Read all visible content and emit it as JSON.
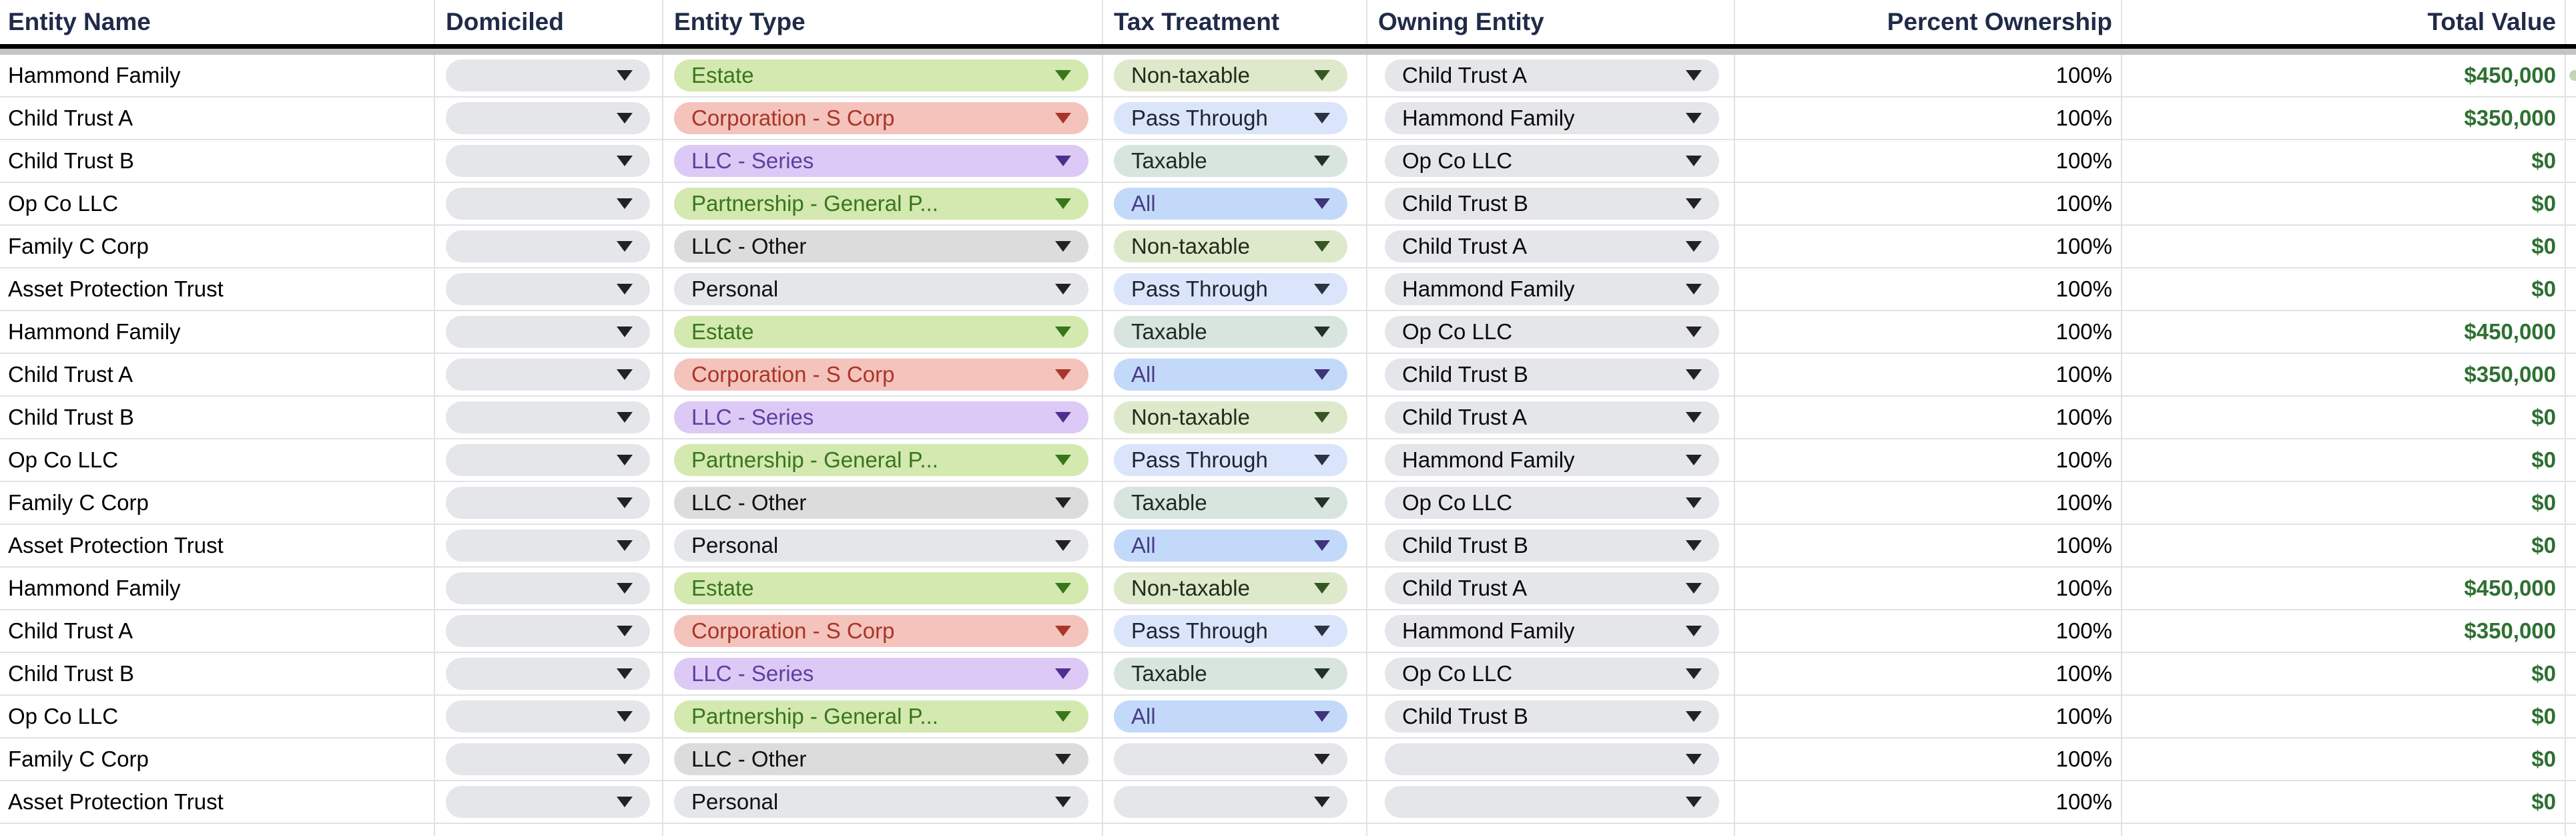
{
  "sheet": {
    "columns": [
      "Entity Name",
      "Domiciled",
      "Entity Type",
      "Tax Treatment",
      "Owning Entity",
      "Percent Ownership",
      "Total Value"
    ],
    "colors": {
      "header_text": "#1f2b47",
      "grid_line": "#e1e2e3",
      "frozen_divider": "#000000",
      "frozen_shadow": "#c3c4c4",
      "money_green": "#2e7031",
      "body_text": "#000000"
    },
    "chip_styles": {
      "empty_default": {
        "bg": "#e5e6e9",
        "fg": "#111111",
        "arrow": "#222222"
      },
      "owning_default": {
        "bg": "#e5e6e9",
        "fg": "#0b0b0b",
        "arrow": "#222222"
      },
      "estate": {
        "bg": "#d3e9af",
        "fg": "#38761d",
        "arrow": "#38761d"
      },
      "s_corp": {
        "bg": "#f4c3bc",
        "fg": "#a93529",
        "arrow": "#a93529"
      },
      "llc_series": {
        "bg": "#ddc9f5",
        "fg": "#5e3f9e",
        "arrow": "#4c2f8f"
      },
      "partnership": {
        "bg": "#d3e9af",
        "fg": "#38761d",
        "arrow": "#38761d"
      },
      "llc_other": {
        "bg": "#dcdcdc",
        "fg": "#111111",
        "arrow": "#222222"
      },
      "personal": {
        "bg": "#e5e6e9",
        "fg": "#111111",
        "arrow": "#222222"
      },
      "non_taxable": {
        "bg": "#dde9ca",
        "fg": "#232b1b",
        "arrow": "#375523"
      },
      "taxable": {
        "bg": "#d7e5de",
        "fg": "#1f2b26",
        "arrow": "#223128"
      },
      "pass_through": {
        "bg": "#dae5fb",
        "fg": "#1f2430",
        "arrow": "#2b3242"
      },
      "all": {
        "bg": "#c3d9f9",
        "fg": "#493d87",
        "arrow": "#3f3379"
      }
    },
    "rows": [
      {
        "name": "Hammond Family",
        "entity_type": {
          "style": "estate",
          "label": "Estate"
        },
        "tax": {
          "style": "non_taxable",
          "label": "Non-taxable"
        },
        "owning": "Child Trust A",
        "percent": "100%",
        "total": "$450,000",
        "edge_sliver": true
      },
      {
        "name": "Child Trust A",
        "entity_type": {
          "style": "s_corp",
          "label": "Corporation - S Corp"
        },
        "tax": {
          "style": "pass_through",
          "label": "Pass Through"
        },
        "owning": "Hammond Family",
        "percent": "100%",
        "total": "$350,000",
        "edge_sliver": false
      },
      {
        "name": "Child Trust B",
        "entity_type": {
          "style": "llc_series",
          "label": "LLC - Series"
        },
        "tax": {
          "style": "taxable",
          "label": "Taxable"
        },
        "owning": "Op Co LLC",
        "percent": "100%",
        "total": "$0",
        "edge_sliver": false
      },
      {
        "name": "Op Co LLC",
        "entity_type": {
          "style": "partnership",
          "label": "Partnership - General P..."
        },
        "tax": {
          "style": "all",
          "label": "All"
        },
        "owning": "Child Trust B",
        "percent": "100%",
        "total": "$0",
        "edge_sliver": false
      },
      {
        "name": "Family C Corp",
        "entity_type": {
          "style": "llc_other",
          "label": "LLC - Other"
        },
        "tax": {
          "style": "non_taxable",
          "label": "Non-taxable"
        },
        "owning": "Child Trust A",
        "percent": "100%",
        "total": "$0",
        "edge_sliver": false
      },
      {
        "name": "Asset Protection Trust",
        "entity_type": {
          "style": "personal",
          "label": "Personal"
        },
        "tax": {
          "style": "pass_through",
          "label": "Pass Through"
        },
        "owning": "Hammond Family",
        "percent": "100%",
        "total": "$0",
        "edge_sliver": false
      },
      {
        "name": "Hammond Family",
        "entity_type": {
          "style": "estate",
          "label": "Estate"
        },
        "tax": {
          "style": "taxable",
          "label": "Taxable"
        },
        "owning": "Op Co LLC",
        "percent": "100%",
        "total": "$450,000",
        "edge_sliver": false
      },
      {
        "name": "Child Trust A",
        "entity_type": {
          "style": "s_corp",
          "label": "Corporation - S Corp"
        },
        "tax": {
          "style": "all",
          "label": "All"
        },
        "owning": "Child Trust B",
        "percent": "100%",
        "total": "$350,000",
        "edge_sliver": false
      },
      {
        "name": "Child Trust B",
        "entity_type": {
          "style": "llc_series",
          "label": "LLC - Series"
        },
        "tax": {
          "style": "non_taxable",
          "label": "Non-taxable"
        },
        "owning": "Child Trust A",
        "percent": "100%",
        "total": "$0",
        "edge_sliver": false
      },
      {
        "name": "Op Co LLC",
        "entity_type": {
          "style": "partnership",
          "label": "Partnership - General P..."
        },
        "tax": {
          "style": "pass_through",
          "label": "Pass Through"
        },
        "owning": "Hammond Family",
        "percent": "100%",
        "total": "$0",
        "edge_sliver": false
      },
      {
        "name": "Family C Corp",
        "entity_type": {
          "style": "llc_other",
          "label": "LLC - Other"
        },
        "tax": {
          "style": "taxable",
          "label": "Taxable"
        },
        "owning": "Op Co LLC",
        "percent": "100%",
        "total": "$0",
        "edge_sliver": false
      },
      {
        "name": "Asset Protection Trust",
        "entity_type": {
          "style": "personal",
          "label": "Personal"
        },
        "tax": {
          "style": "all",
          "label": "All"
        },
        "owning": "Child Trust B",
        "percent": "100%",
        "total": "$0",
        "edge_sliver": false
      },
      {
        "name": "Hammond Family",
        "entity_type": {
          "style": "estate",
          "label": "Estate"
        },
        "tax": {
          "style": "non_taxable",
          "label": "Non-taxable"
        },
        "owning": "Child Trust A",
        "percent": "100%",
        "total": "$450,000",
        "edge_sliver": false
      },
      {
        "name": "Child Trust A",
        "entity_type": {
          "style": "s_corp",
          "label": "Corporation - S Corp"
        },
        "tax": {
          "style": "pass_through",
          "label": "Pass Through"
        },
        "owning": "Hammond Family",
        "percent": "100%",
        "total": "$350,000",
        "edge_sliver": false
      },
      {
        "name": "Child Trust B",
        "entity_type": {
          "style": "llc_series",
          "label": "LLC - Series"
        },
        "tax": {
          "style": "taxable",
          "label": "Taxable"
        },
        "owning": "Op Co LLC",
        "percent": "100%",
        "total": "$0",
        "edge_sliver": false
      },
      {
        "name": "Op Co LLC",
        "entity_type": {
          "style": "partnership",
          "label": "Partnership - General P..."
        },
        "tax": {
          "style": "all",
          "label": "All"
        },
        "owning": "Child Trust B",
        "percent": "100%",
        "total": "$0",
        "edge_sliver": false
      },
      {
        "name": "Family C Corp",
        "entity_type": {
          "style": "llc_other",
          "label": "LLC - Other"
        },
        "tax": {
          "style": "empty_default",
          "label": ""
        },
        "owning": "",
        "percent": "100%",
        "total": "$0",
        "edge_sliver": false
      },
      {
        "name": "Asset Protection Trust",
        "entity_type": {
          "style": "personal",
          "label": "Personal"
        },
        "tax": {
          "style": "empty_default",
          "label": ""
        },
        "owning": "",
        "percent": "100%",
        "total": "$0",
        "edge_sliver": false
      }
    ]
  }
}
